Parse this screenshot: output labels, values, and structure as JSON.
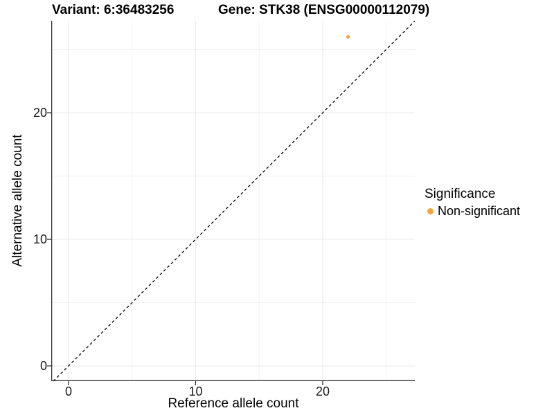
{
  "header": {
    "variant_title": "Variant: 6:36483256",
    "gene_title": "Gene: STK38 (ENSG00000112079)"
  },
  "chart_data": {
    "type": "scatter",
    "titles": [
      "Variant: 6:36483256",
      "Gene: STK38 (ENSG00000112079)"
    ],
    "xlabel": "Reference allele count",
    "ylabel": "Alternative allele count",
    "xlim": [
      -1.36,
      27.25
    ],
    "ylim": [
      -1.2,
      27.27
    ],
    "x_ticks": [
      0,
      10,
      20
    ],
    "y_ticks": [
      0,
      10,
      20
    ],
    "x_minor_gridlines": [
      5,
      15,
      25
    ],
    "y_minor_gridlines": [
      5,
      15,
      25
    ],
    "grid": true,
    "points": [
      {
        "x": 22,
        "y": 26,
        "series": "Non-significant"
      }
    ],
    "identity_line": {
      "equation": "y = x",
      "style": "dashed",
      "color": "#000000"
    },
    "legend": {
      "title": "Significance",
      "position": "right",
      "entries": [
        {
          "label": "Non-significant",
          "color": "#F9A23B"
        }
      ]
    },
    "colors": {
      "point": "#F9A23B",
      "axis_line": "#333333",
      "grid_major": "#e9e9e9",
      "grid_minor": "#f3f3f3",
      "tick": "#333333"
    }
  }
}
